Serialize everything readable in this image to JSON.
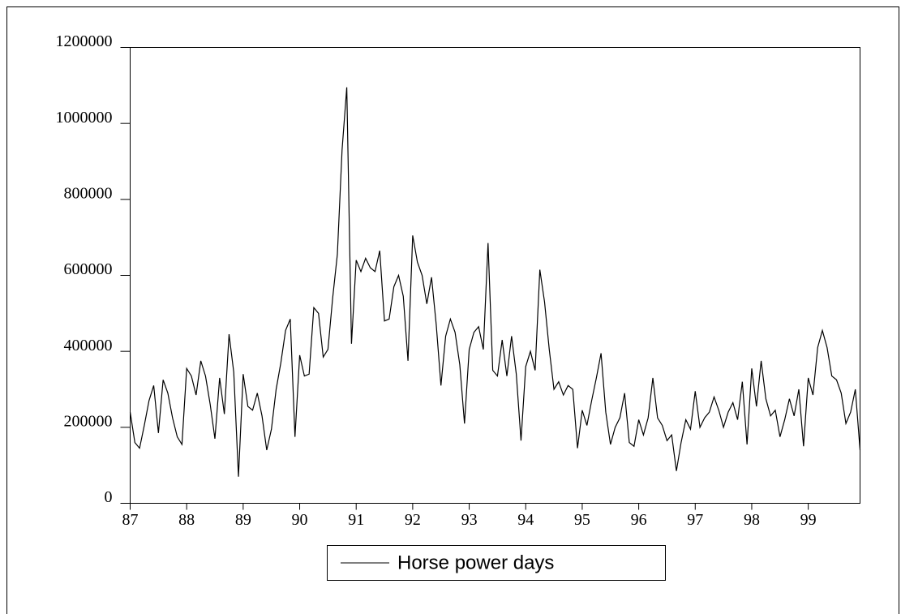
{
  "chart_data": {
    "type": "line",
    "categories": [
      "87",
      null,
      null,
      null,
      null,
      null,
      null,
      null,
      null,
      null,
      null,
      null,
      "88",
      null,
      null,
      null,
      null,
      null,
      null,
      null,
      null,
      null,
      null,
      null,
      "89",
      null,
      null,
      null,
      null,
      null,
      null,
      null,
      null,
      null,
      null,
      null,
      "90",
      null,
      null,
      null,
      null,
      null,
      null,
      null,
      null,
      null,
      null,
      null,
      "91",
      null,
      null,
      null,
      null,
      null,
      null,
      null,
      null,
      null,
      null,
      null,
      "92",
      null,
      null,
      null,
      null,
      null,
      null,
      null,
      null,
      null,
      null,
      null,
      "93",
      null,
      null,
      null,
      null,
      null,
      null,
      null,
      null,
      null,
      null,
      null,
      "94",
      null,
      null,
      null,
      null,
      null,
      null,
      null,
      null,
      null,
      null,
      null,
      "95",
      null,
      null,
      null,
      null,
      null,
      null,
      null,
      null,
      null,
      null,
      null,
      "96",
      null,
      null,
      null,
      null,
      null,
      null,
      null,
      null,
      null,
      null,
      null,
      "97",
      null,
      null,
      null,
      null,
      null,
      null,
      null,
      null,
      null,
      null,
      null,
      "98",
      null,
      null,
      null,
      null,
      null,
      null,
      null,
      null,
      null,
      null,
      null,
      "99",
      null,
      null,
      null,
      null,
      null,
      null,
      null,
      null,
      null,
      null,
      null
    ],
    "series": [
      {
        "name": "Horse power days",
        "color": "#000000",
        "values": [
          240000,
          160000,
          145000,
          205000,
          270000,
          310000,
          185000,
          325000,
          290000,
          225000,
          175000,
          155000,
          355000,
          335000,
          285000,
          375000,
          335000,
          260000,
          170000,
          330000,
          235000,
          445000,
          345000,
          70000,
          340000,
          255000,
          245000,
          290000,
          230000,
          140000,
          195000,
          300000,
          370000,
          455000,
          485000,
          175000,
          390000,
          335000,
          340000,
          515000,
          500000,
          385000,
          405000,
          540000,
          655000,
          930000,
          1095000,
          420000,
          640000,
          610000,
          645000,
          620000,
          610000,
          665000,
          480000,
          485000,
          570000,
          600000,
          545000,
          375000,
          705000,
          635000,
          600000,
          525000,
          595000,
          470000,
          310000,
          440000,
          485000,
          450000,
          365000,
          210000,
          405000,
          450000,
          465000,
          405000,
          685000,
          350000,
          335000,
          430000,
          335000,
          440000,
          340000,
          165000,
          360000,
          400000,
          350000,
          615000,
          530000,
          405000,
          300000,
          320000,
          285000,
          310000,
          300000,
          145000,
          245000,
          205000,
          270000,
          330000,
          395000,
          240000,
          155000,
          200000,
          225000,
          290000,
          160000,
          150000,
          220000,
          180000,
          225000,
          330000,
          225000,
          205000,
          165000,
          180000,
          85000,
          160000,
          220000,
          195000,
          295000,
          200000,
          225000,
          240000,
          280000,
          245000,
          200000,
          240000,
          265000,
          220000,
          320000,
          155000,
          355000,
          255000,
          375000,
          275000,
          230000,
          245000,
          175000,
          220000,
          275000,
          230000,
          300000,
          150000,
          330000,
          285000,
          410000,
          455000,
          410000,
          335000,
          325000,
          290000,
          210000,
          240000,
          300000,
          140000
        ]
      }
    ],
    "ylim": [
      0,
      1200000
    ],
    "yticks": [
      0,
      200000,
      400000,
      600000,
      800000,
      1000000,
      1200000
    ]
  }
}
